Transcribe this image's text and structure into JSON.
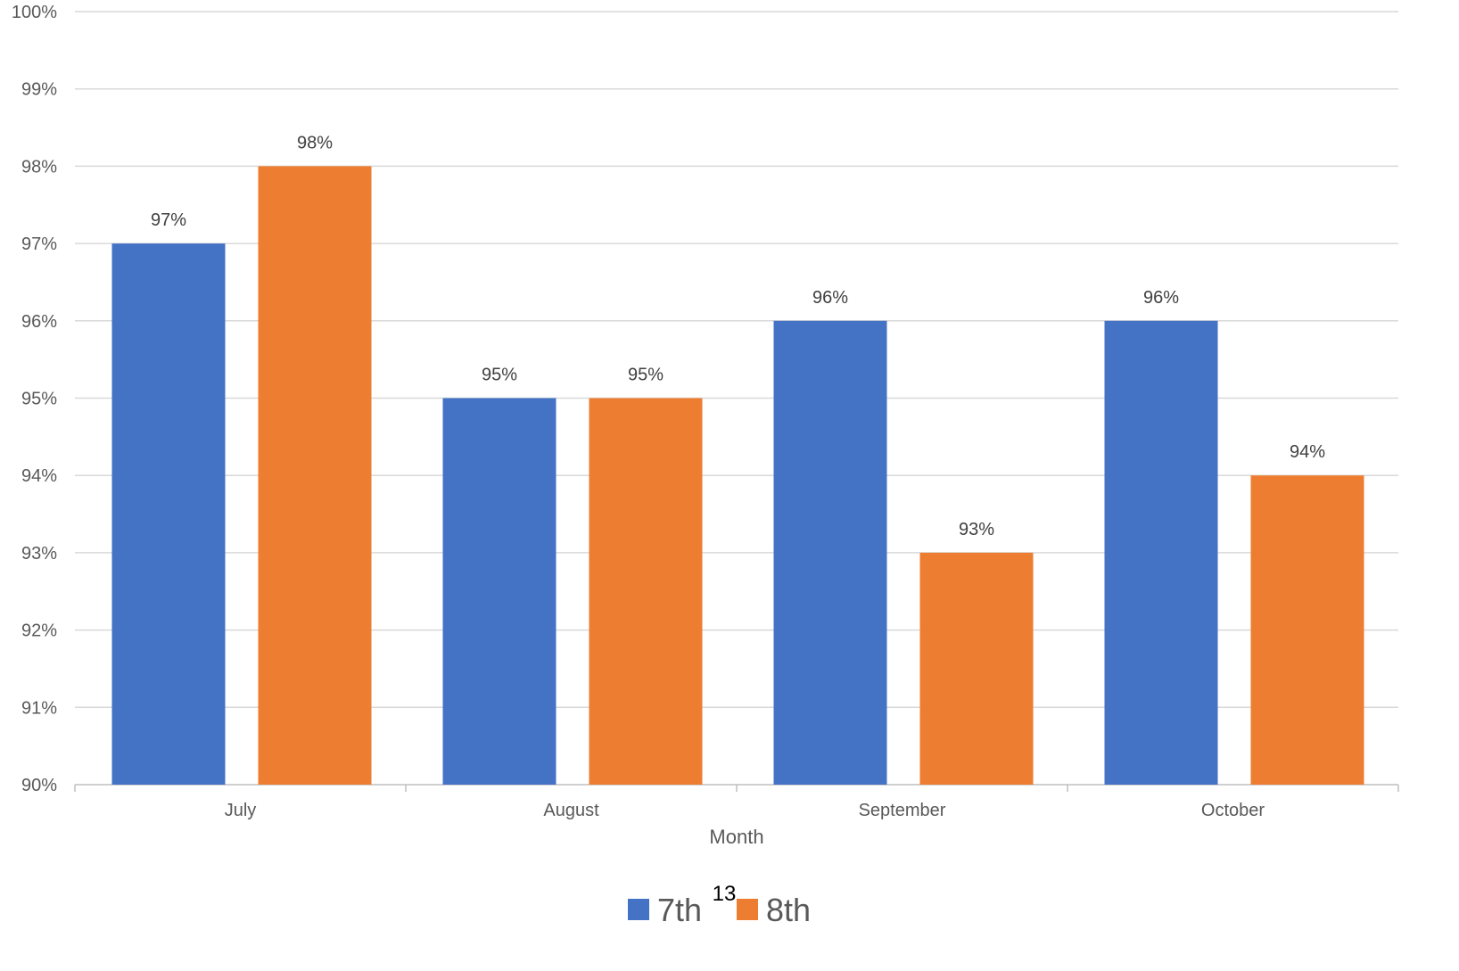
{
  "chart_data": {
    "type": "bar",
    "title": "",
    "xlabel": "Month",
    "ylabel": "",
    "categories": [
      "July",
      "August",
      "September",
      "October"
    ],
    "series": [
      {
        "name": "7th",
        "color": "#4472C4",
        "values": [
          97,
          95,
          96,
          96
        ],
        "labels": [
          "97%",
          "95%",
          "96%",
          "96%"
        ]
      },
      {
        "name": "8th",
        "color": "#ED7D31",
        "values": [
          98,
          95,
          93,
          94
        ],
        "labels": [
          "98%",
          "95%",
          "93%",
          "94%"
        ]
      }
    ],
    "ylim": [
      90,
      100
    ],
    "yticks": [
      90,
      91,
      92,
      93,
      94,
      95,
      96,
      97,
      98,
      99,
      100
    ],
    "ytick_labels": [
      "90%",
      "91%",
      "92%",
      "93%",
      "94%",
      "95%",
      "96%",
      "97%",
      "98%",
      "99%",
      "100%"
    ],
    "grid": true,
    "legend": "bottom-center",
    "gridline_color": "#D9D9D9",
    "axis_line_color": "#BFBFBF"
  },
  "page_number": "13"
}
